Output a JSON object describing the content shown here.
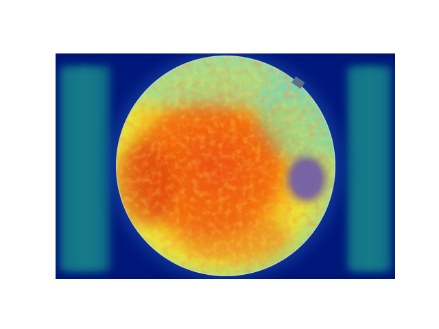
{
  "figure": {
    "description_name": "fundus-heatmap-overlay",
    "colormap": "jet",
    "colors": {
      "background": "#00106e",
      "side_band": "#0f6f86",
      "disc_region": "#6f5a9c",
      "hot": "#e8420f",
      "warm": "#ffb000",
      "mid": "#cfe23a",
      "cool": "#46c7b8"
    }
  }
}
